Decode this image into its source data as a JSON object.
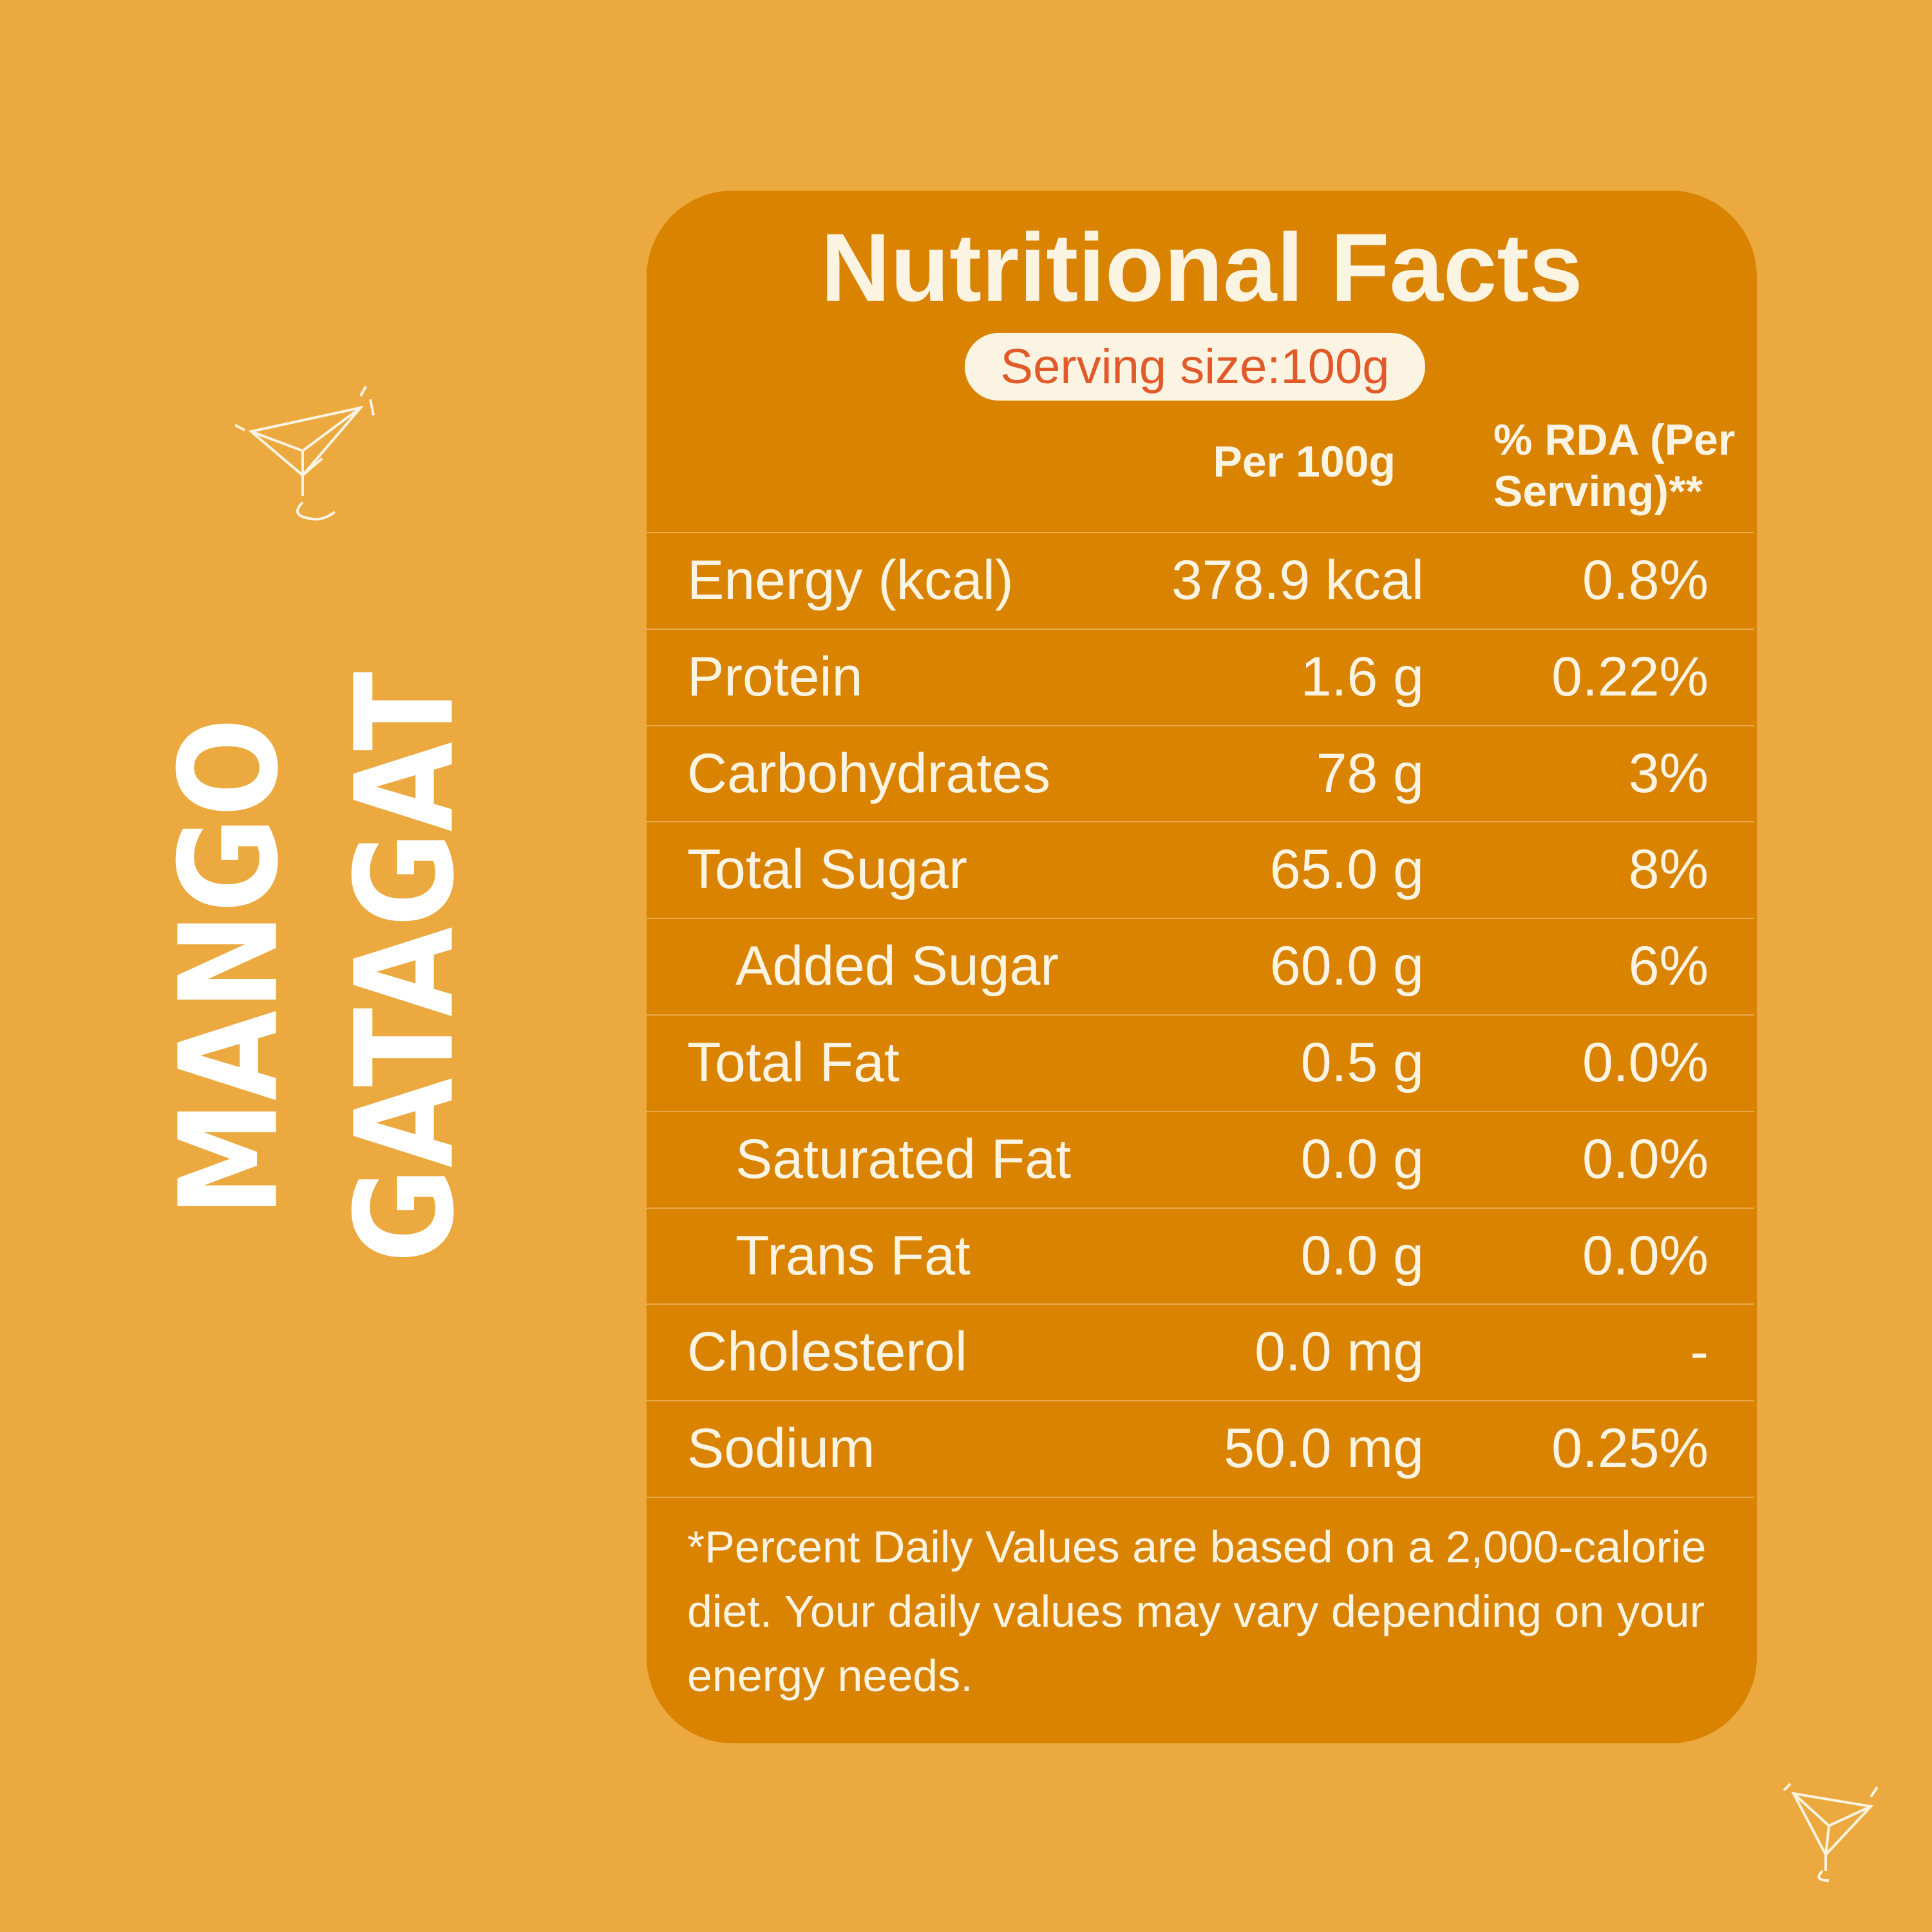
{
  "brand": {
    "lines": [
      "MANGO",
      "GATAGAT"
    ]
  },
  "panel": {
    "title": "Nutritional Facts",
    "serving_size": "Serving size:100g",
    "table": {
      "columns": [
        "Per 100g",
        "% RDA (Per Serving)**"
      ],
      "rows": [
        {
          "name": "Energy (kcal)",
          "per_100g": "378.9 kcal",
          "rda": "0.8%"
        },
        {
          "name": "Protein",
          "per_100g": "1.6 g",
          "rda": "0.22%"
        },
        {
          "name": "Carbohydrates",
          "per_100g": "78 g",
          "rda": "3%"
        },
        {
          "name": "Total Sugar",
          "per_100g": "65.0 g",
          "rda": "8%",
          "sub_rows": [
            {
              "name": "Added Sugar",
              "per_100g": "60.0 g",
              "rda": "6%"
            }
          ]
        },
        {
          "name": "Total Fat",
          "per_100g": "0.5 g",
          "rda": "0.0%",
          "sub_rows": [
            {
              "name": "Saturated Fat",
              "per_100g": "0.0 g",
              "rda": "0.0%"
            },
            {
              "name": "Trans Fat",
              "per_100g": "0.0 g",
              "rda": "0.0%"
            }
          ]
        },
        {
          "name": "Cholesterol",
          "per_100g": "0.0 mg",
          "rda": "-"
        },
        {
          "name": "Sodium",
          "per_100g": "50.0 mg",
          "rda": "0.25%"
        }
      ]
    },
    "footnote": "*Percent Daily Values are based on a 2,000-calorie diet. Your daily values may vary depending on your energy needs."
  }
}
